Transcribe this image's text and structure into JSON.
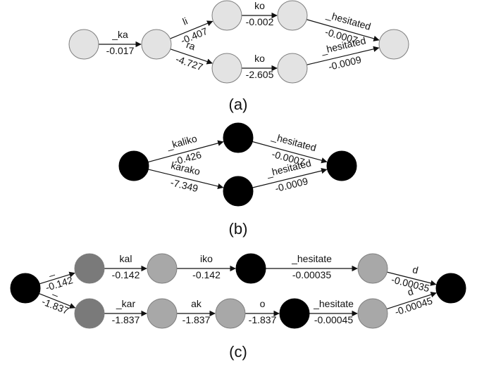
{
  "colors": {
    "light": "#e3e3e3",
    "mid": "#a8a8a8",
    "dark": "#7a7a7a",
    "black": "#000000",
    "stroke": "#7f7f7f",
    "edge": "#111111"
  },
  "panels": [
    {
      "id": "a",
      "caption": "(a)",
      "nodes": [
        {
          "id": "a0",
          "shade": "light"
        },
        {
          "id": "a1",
          "shade": "light"
        },
        {
          "id": "a2",
          "shade": "light"
        },
        {
          "id": "a3",
          "shade": "light"
        },
        {
          "id": "a4",
          "shade": "light"
        },
        {
          "id": "a5",
          "shade": "light"
        },
        {
          "id": "a6",
          "shade": "light"
        }
      ],
      "edges": [
        {
          "from": "a0",
          "to": "a1",
          "token": "_ka",
          "score": "-0.017"
        },
        {
          "from": "a1",
          "to": "a2",
          "token": "li",
          "score": "-0.407"
        },
        {
          "from": "a1",
          "to": "a3",
          "token": "ra",
          "score": "-4.727"
        },
        {
          "from": "a2",
          "to": "a4",
          "token": "ko",
          "score": "-0.002"
        },
        {
          "from": "a3",
          "to": "a5",
          "token": "ko",
          "score": "-2.605"
        },
        {
          "from": "a4",
          "to": "a6",
          "token": "_hesitated",
          "score": "-0.0007"
        },
        {
          "from": "a5",
          "to": "a6",
          "token": "_hesitated",
          "score": "-0.0009"
        }
      ]
    },
    {
      "id": "b",
      "caption": "(b)",
      "nodes": [
        {
          "id": "b0",
          "shade": "black"
        },
        {
          "id": "b1",
          "shade": "black"
        },
        {
          "id": "b2",
          "shade": "black"
        },
        {
          "id": "b3",
          "shade": "black"
        }
      ],
      "edges": [
        {
          "from": "b0",
          "to": "b1",
          "token": "_kaliko",
          "score": "-0.426"
        },
        {
          "from": "b0",
          "to": "b2",
          "token": "karako",
          "score": "-7.349"
        },
        {
          "from": "b1",
          "to": "b3",
          "token": "_hesitated",
          "score": "-0.0007"
        },
        {
          "from": "b2",
          "to": "b3",
          "token": "_hesitated",
          "score": "-0.0009"
        }
      ]
    },
    {
      "id": "c",
      "caption": "(c)",
      "nodes": [
        {
          "id": "c0",
          "shade": "black"
        },
        {
          "id": "c1",
          "shade": "dark"
        },
        {
          "id": "c2",
          "shade": "mid"
        },
        {
          "id": "c3",
          "shade": "black"
        },
        {
          "id": "c4",
          "shade": "mid"
        },
        {
          "id": "c5",
          "shade": "dark"
        },
        {
          "id": "c6",
          "shade": "mid"
        },
        {
          "id": "c7",
          "shade": "mid"
        },
        {
          "id": "c8",
          "shade": "black"
        },
        {
          "id": "c9",
          "shade": "mid"
        },
        {
          "id": "c10",
          "shade": "black"
        }
      ],
      "edges": [
        {
          "from": "c0",
          "to": "c1",
          "token": "_",
          "score": "-0.142"
        },
        {
          "from": "c1",
          "to": "c2",
          "token": "kal",
          "score": "-0.142"
        },
        {
          "from": "c2",
          "to": "c3",
          "token": "iko",
          "score": "-0.142"
        },
        {
          "from": "c3",
          "to": "c4",
          "token": "_hesitate",
          "score": "-0.00035"
        },
        {
          "from": "c4",
          "to": "c10",
          "token": "d",
          "score": "-0.00035"
        },
        {
          "from": "c0",
          "to": "c5",
          "token": "_",
          "score": "-1.837"
        },
        {
          "from": "c5",
          "to": "c6",
          "token": "_kar",
          "score": "-1.837"
        },
        {
          "from": "c6",
          "to": "c7",
          "token": "ak",
          "score": "-1.837"
        },
        {
          "from": "c7",
          "to": "c8",
          "token": "o",
          "score": "-1.837"
        },
        {
          "from": "c8",
          "to": "c9",
          "token": "_hesitate",
          "score": "-0.00045"
        },
        {
          "from": "c9",
          "to": "c10",
          "token": "d",
          "score": "-0.00045"
        }
      ]
    }
  ]
}
